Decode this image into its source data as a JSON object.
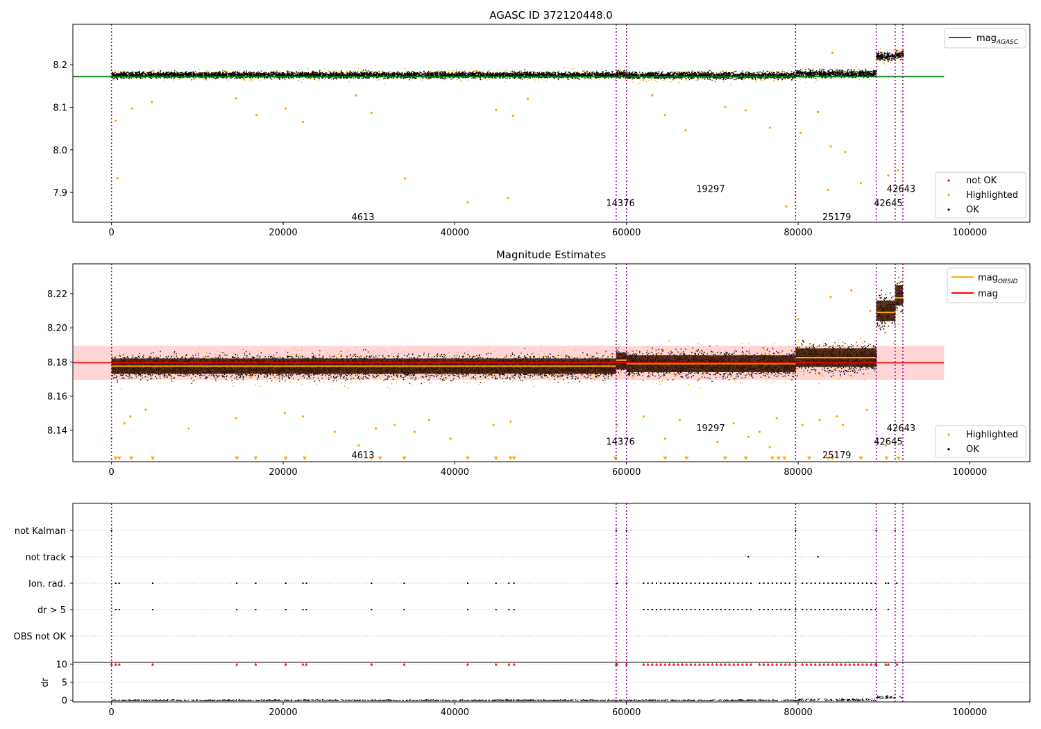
{
  "chart_data": [
    {
      "type": "scatter",
      "title": "AGASC ID 372120448.0",
      "xlim": [
        -4500,
        107000
      ],
      "ylim": [
        7.83,
        8.295
      ],
      "xticks": [
        0,
        20000,
        40000,
        60000,
        80000,
        100000
      ],
      "xtick_labels": [
        "0",
        "20000",
        "40000",
        "60000",
        "80000",
        "100000"
      ],
      "yticks": [
        7.9,
        8.0,
        8.1,
        8.2
      ],
      "ytick_labels": [
        "7.9",
        "8.0",
        "8.1",
        "8.2"
      ],
      "vlines": [
        0,
        58800,
        60000,
        79700,
        89100,
        91300,
        92200
      ],
      "reference_lines": [
        {
          "name": "mag_AGASC",
          "label": "mag",
          "subscript": "AGASC",
          "y": 8.172,
          "x": [
            -4500,
            97000
          ],
          "color": "#008000"
        }
      ],
      "obsid_labels": [
        {
          "text": "4613",
          "x": 29300,
          "y": 7.843
        },
        {
          "text": "14376",
          "x": 59300,
          "y": 7.876
        },
        {
          "text": "19297",
          "x": 69800,
          "y": 7.909
        },
        {
          "text": "25179",
          "x": 84500,
          "y": 7.843
        },
        {
          "text": "42645",
          "x": 90500,
          "y": 7.876
        },
        {
          "text": "42643",
          "x": 92000,
          "y": 7.909
        }
      ],
      "segments": [
        {
          "x": [
            0,
            58800
          ],
          "center": 8.177,
          "half_width": 0.011
        },
        {
          "x": [
            58800,
            60000
          ],
          "center": 8.178,
          "half_width": 0.012
        },
        {
          "x": [
            60000,
            79700
          ],
          "center": 8.176,
          "half_width": 0.012
        },
        {
          "x": [
            79700,
            89100
          ],
          "center": 8.18,
          "half_width": 0.013
        },
        {
          "x": [
            89100,
            91300
          ],
          "center": 8.22,
          "half_width": 0.013
        },
        {
          "x": [
            91300,
            92200
          ],
          "center": 8.225,
          "half_width": 0.013
        }
      ],
      "highlighted_outliers": [
        [
          700,
          7.933
        ],
        [
          500,
          8.068
        ],
        [
          2400,
          8.097
        ],
        [
          4700,
          8.112
        ],
        [
          14500,
          8.121
        ],
        [
          16900,
          8.082
        ],
        [
          20300,
          8.097
        ],
        [
          22300,
          8.066
        ],
        [
          28500,
          8.128
        ],
        [
          30300,
          8.087
        ],
        [
          34200,
          7.933
        ],
        [
          41500,
          7.877
        ],
        [
          44800,
          8.094
        ],
        [
          46200,
          7.887
        ],
        [
          46800,
          8.08
        ],
        [
          48500,
          8.12
        ],
        [
          63000,
          8.128
        ],
        [
          64500,
          8.082
        ],
        [
          66900,
          8.046
        ],
        [
          71500,
          8.101
        ],
        [
          73900,
          8.093
        ],
        [
          76700,
          8.052
        ],
        [
          78600,
          7.867
        ],
        [
          80300,
          8.04
        ],
        [
          82300,
          8.089
        ],
        [
          83800,
          8.008
        ],
        [
          83500,
          7.906
        ],
        [
          85500,
          7.995
        ],
        [
          87300,
          7.922
        ],
        [
          90500,
          7.94
        ],
        [
          91600,
          7.952
        ],
        [
          92000,
          8.09
        ],
        [
          84000,
          8.228
        ]
      ],
      "legend": {
        "position": "upper-right / lower-right",
        "entries": [
          "not OK",
          "Highlighted",
          "OK"
        ]
      },
      "grid": false
    },
    {
      "type": "scatter",
      "title": "Magnitude Estimates",
      "xlim": [
        -4500,
        107000
      ],
      "ylim": [
        8.1215,
        8.2375
      ],
      "xticks": [
        0,
        20000,
        40000,
        60000,
        80000,
        100000
      ],
      "xtick_labels": [
        "0",
        "20000",
        "40000",
        "60000",
        "80000",
        "100000"
      ],
      "yticks": [
        8.14,
        8.16,
        8.18,
        8.2,
        8.22
      ],
      "ytick_labels": [
        "8.14",
        "8.16",
        "8.18",
        "8.20",
        "8.22"
      ],
      "vlines": [
        0,
        58800,
        60000,
        79700,
        89100,
        91300,
        92200
      ],
      "reference_lines": [
        {
          "name": "mag",
          "label": "mag",
          "y": 8.1795,
          "x": [
            -4500,
            97000
          ],
          "color": "#ff0000",
          "band": [
            8.1695,
            8.1895
          ]
        }
      ],
      "obsid_segments": [
        {
          "x": [
            0,
            58800
          ],
          "mag_obsid": 8.1775,
          "center": 8.1775,
          "half_width": 0.0045,
          "outer_half_width": 0.0085
        },
        {
          "x": [
            58800,
            60000
          ],
          "mag_obsid": 8.181,
          "center": 8.1805,
          "half_width": 0.005,
          "outer_half_width": 0.009
        },
        {
          "x": [
            60000,
            79700
          ],
          "mag_obsid": 8.179,
          "center": 8.179,
          "half_width": 0.005,
          "outer_half_width": 0.0095
        },
        {
          "x": [
            79700,
            89100
          ],
          "mag_obsid": 8.1825,
          "center": 8.1825,
          "half_width": 0.0055,
          "outer_half_width": 0.0105
        },
        {
          "x": [
            89100,
            91300
          ],
          "mag_obsid": 8.209,
          "center": 8.21,
          "half_width": 0.006,
          "outer_half_width": 0.013
        },
        {
          "x": [
            91300,
            92200
          ],
          "mag_obsid": 8.2175,
          "center": 8.219,
          "half_width": 0.006,
          "outer_half_width": 0.013
        }
      ],
      "obsid_labels": [
        {
          "text": "4613",
          "x": 29300,
          "y": 8.1255
        },
        {
          "text": "14376",
          "x": 59300,
          "y": 8.1335
        },
        {
          "text": "19297",
          "x": 69800,
          "y": 8.1415
        },
        {
          "text": "25179",
          "x": 84500,
          "y": 8.1255
        },
        {
          "text": "42645",
          "x": 90500,
          "y": 8.1335
        },
        {
          "text": "42643",
          "x": 92000,
          "y": 8.1415
        }
      ],
      "highlighted_outliers": [
        [
          0,
          8.135
        ],
        [
          1500,
          8.144
        ],
        [
          2200,
          8.148
        ],
        [
          4000,
          8.152
        ],
        [
          9000,
          8.141
        ],
        [
          14500,
          8.147
        ],
        [
          20200,
          8.15
        ],
        [
          22300,
          8.148
        ],
        [
          26000,
          8.139
        ],
        [
          28800,
          8.131
        ],
        [
          30800,
          8.141
        ],
        [
          33000,
          8.143
        ],
        [
          35300,
          8.139
        ],
        [
          37000,
          8.146
        ],
        [
          39500,
          8.135
        ],
        [
          44500,
          8.143
        ],
        [
          46500,
          8.145
        ],
        [
          58900,
          8.143
        ],
        [
          62000,
          8.148
        ],
        [
          64500,
          8.135
        ],
        [
          66200,
          8.146
        ],
        [
          70600,
          8.133
        ],
        [
          72500,
          8.144
        ],
        [
          74200,
          8.136
        ],
        [
          75500,
          8.139
        ],
        [
          76700,
          8.13
        ],
        [
          77500,
          8.147
        ],
        [
          80500,
          8.143
        ],
        [
          82500,
          8.146
        ],
        [
          84500,
          8.148
        ],
        [
          85200,
          8.143
        ],
        [
          88000,
          8.152
        ],
        [
          90200,
          8.131
        ],
        [
          91400,
          8.133
        ],
        [
          80000,
          8.205
        ],
        [
          83800,
          8.218
        ],
        [
          86200,
          8.222
        ],
        [
          88400,
          8.21
        ]
      ],
      "low_markers_y": 8.1235,
      "low_markers_x": [
        500,
        900,
        2300,
        4800,
        14600,
        16800,
        20300,
        22500,
        30300,
        31300,
        34100,
        41500,
        44800,
        46500,
        46900,
        58700,
        64500,
        67000,
        71500,
        73900,
        77000,
        77700,
        78400,
        81300,
        83500,
        84000,
        87300,
        90300,
        91700
      ],
      "legend": {
        "position": "upper-right / lower-right",
        "entries": [
          "mag_OBSID",
          "mag",
          "Highlighted",
          "OK"
        ]
      },
      "grid": false
    },
    {
      "type": "scatter",
      "title": "",
      "xlim": [
        -4500,
        107000
      ],
      "categories": [
        "not Kalman",
        "not track",
        "Ion. rad.",
        "dr > 5",
        "OBS not OK"
      ],
      "category_points": {
        "not Kalman": [
          0,
          58800,
          60000,
          79700,
          89100,
          91300
        ],
        "not track": [
          74200,
          82300
        ],
        "Ion. rad.": [
          500,
          900,
          4800,
          14600,
          16800,
          20300,
          22300,
          22700,
          30300,
          34100,
          41500,
          44800,
          46300,
          46900,
          58900,
          60000,
          62000,
          62500,
          63000,
          63500,
          64000,
          64500,
          65000,
          65500,
          66000,
          66500,
          67000,
          67500,
          68000,
          68500,
          69000,
          69500,
          70000,
          70500,
          71000,
          71500,
          72000,
          72500,
          73000,
          73500,
          74000,
          74500,
          75500,
          76000,
          76500,
          77000,
          77500,
          78000,
          78500,
          79000,
          79700,
          80500,
          81000,
          81500,
          82000,
          82500,
          83000,
          83500,
          84000,
          84500,
          85000,
          85500,
          86000,
          86500,
          87000,
          87500,
          88000,
          88500,
          89000,
          90200,
          90500,
          91500
        ],
        "dr > 5": [
          500,
          900,
          4800,
          14600,
          16800,
          20300,
          22300,
          22700,
          30300,
          34100,
          41500,
          44800,
          46300,
          46900,
          62000,
          62500,
          63000,
          63500,
          64000,
          64500,
          65000,
          65500,
          66000,
          66500,
          67000,
          67500,
          68000,
          68500,
          69000,
          69500,
          70000,
          70500,
          71000,
          71500,
          72000,
          72500,
          73000,
          73500,
          74000,
          74500,
          75500,
          76000,
          76500,
          77000,
          77500,
          78000,
          78500,
          79000,
          79700,
          80500,
          81000,
          81500,
          82000,
          82500,
          83000,
          83500,
          84000,
          84500,
          85000,
          85500,
          86000,
          86500,
          87000,
          87500,
          88000,
          88500,
          89000,
          90500
        ],
        "OBS not OK": []
      },
      "vlines": [
        0,
        58800,
        60000,
        79700,
        89100,
        91300,
        92200
      ],
      "grid": true
    },
    {
      "type": "scatter",
      "title": "",
      "ylabel": "dr",
      "xlim": [
        -4500,
        107000
      ],
      "ylim": [
        -0.5,
        10.5
      ],
      "xticks": [
        0,
        20000,
        40000,
        60000,
        80000,
        100000
      ],
      "xtick_labels": [
        "0",
        "20000",
        "40000",
        "60000",
        "80000",
        "100000"
      ],
      "yticks": [
        0,
        5,
        10
      ],
      "ytick_labels": [
        "0",
        "5",
        "10"
      ],
      "capped_at_10_x": [
        0,
        500,
        900,
        4800,
        14600,
        16800,
        20300,
        22300,
        22700,
        30300,
        34100,
        41500,
        44800,
        46300,
        46900,
        58800,
        58900,
        60000,
        62000,
        62500,
        63000,
        63500,
        64000,
        64500,
        65000,
        65500,
        66000,
        66500,
        67000,
        67500,
        68000,
        68500,
        69000,
        69500,
        70000,
        70500,
        71000,
        71500,
        72000,
        72500,
        73000,
        73500,
        74000,
        74500,
        75500,
        76000,
        76500,
        77000,
        77500,
        78000,
        78500,
        79000,
        79700,
        80500,
        81000,
        81500,
        82000,
        82500,
        83000,
        83500,
        84000,
        84500,
        85000,
        85500,
        86000,
        86500,
        87000,
        87500,
        88000,
        88500,
        89000,
        89100,
        90200,
        90500,
        91500
      ],
      "vlines": [
        0,
        58800,
        60000,
        79700,
        89100,
        91300,
        92200
      ],
      "grid": true
    }
  ],
  "colors": {
    "ok": "#000000",
    "highlighted": "#ffa500",
    "not_ok": "#ff0000",
    "agasc_line": "#008000",
    "obsid_line": "#ffa500",
    "mag_line": "#ff0000",
    "mag_band": "#ffd6d6",
    "obsid_band": "#3a1500",
    "vline": "#800080",
    "grid": "#b0b0b0"
  },
  "legend_labels": {
    "mag": "mag",
    "agasc_sub": "AGASC",
    "obsid_sub": "OBSID",
    "not_ok": "not OK",
    "highlighted": "Highlighted",
    "ok": "OK"
  }
}
